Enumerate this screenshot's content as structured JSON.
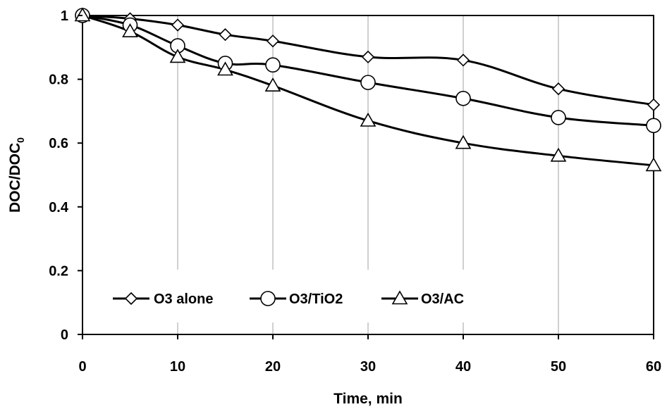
{
  "chart_data": {
    "type": "line",
    "x": [
      0,
      5,
      10,
      15,
      20,
      30,
      40,
      50,
      60
    ],
    "series": [
      {
        "name": "O3 alone",
        "marker": "diamond",
        "values": [
          1.0,
          0.99,
          0.97,
          0.94,
          0.92,
          0.87,
          0.86,
          0.77,
          0.72
        ]
      },
      {
        "name": "O3/TiO2",
        "marker": "circle",
        "values": [
          1.0,
          0.97,
          0.905,
          0.85,
          0.845,
          0.79,
          0.74,
          0.68,
          0.655
        ]
      },
      {
        "name": "O3/AC",
        "marker": "triangle",
        "values": [
          1.0,
          0.95,
          0.87,
          0.83,
          0.78,
          0.67,
          0.6,
          0.56,
          0.53
        ]
      }
    ],
    "xlabel": "Time, min",
    "ylabel": "DOC/DOC0",
    "ylabel_main": "DOC/DOC",
    "ylabel_sub": "0",
    "xlim": [
      0,
      60
    ],
    "ylim": [
      0,
      1
    ],
    "xticks": [
      0,
      10,
      20,
      30,
      40,
      50,
      60
    ],
    "yticks": [
      0,
      0.2,
      0.4,
      0.6,
      0.8,
      1
    ],
    "xtick_labels": [
      "0",
      "10",
      "20",
      "30",
      "40",
      "50",
      "60"
    ],
    "ytick_labels": [
      "0",
      "0.2",
      "0.4",
      "0.6",
      "0.8",
      "1"
    ],
    "grid": "vertical",
    "legend_position": "lower-left",
    "line_color": "#000000",
    "marker_fill": "#ffffff",
    "grid_color": "#a0a0a0"
  }
}
